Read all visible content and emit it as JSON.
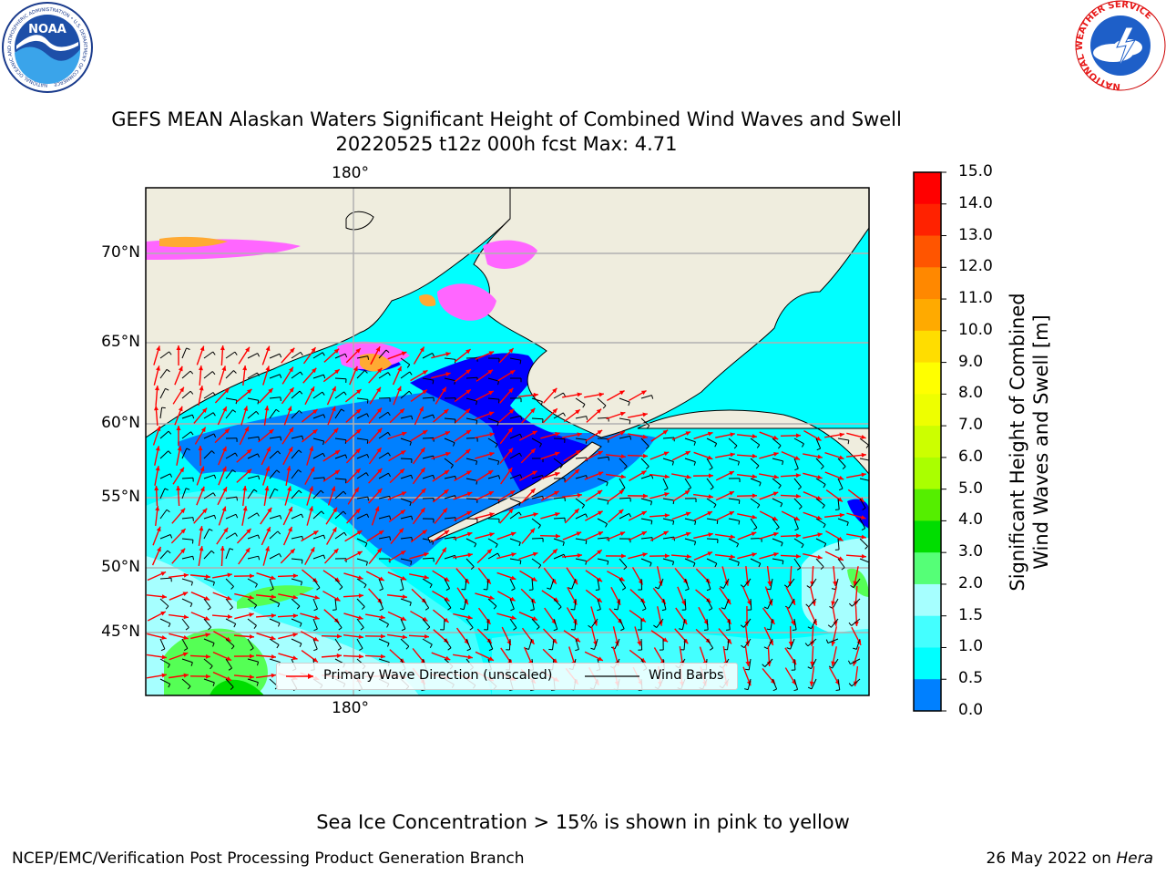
{
  "header": {
    "title_line1": "GEFS MEAN Alaskan Waters Significant Height of Combined Wind Waves and Swell",
    "title_line2": "20220525 t12z 000h fcst   Max: 4.71"
  },
  "logos": {
    "noaa": {
      "text": "NOAA",
      "ring_text": "NATIONAL OCEANIC AND ATMOSPHERIC ADMINISTRATION • U.S. DEPARTMENT OF COMMERCE"
    },
    "nws": {
      "ring_text": "NATIONAL WEATHER SERVICE"
    }
  },
  "map": {
    "lat_labels": [
      "70°N",
      "65°N",
      "60°N",
      "55°N",
      "50°N",
      "45°N"
    ],
    "lon_label_top": "180°",
    "lon_label_bottom": "180°",
    "colors": {
      "land": "#efedde",
      "ocean_1_1_5": "#00ffff",
      "ocean_1_5_2": "#44ffff",
      "ocean_2_3": "#a6ffff",
      "ocean_0_5_1": "#0080ff",
      "ocean_0_0_5": "#0000ff",
      "wave_3_4": "#55ff55",
      "wave_4_5": "#00dd00",
      "ice": "#ff66ff",
      "ice_high": "#ffaa33",
      "wave_arrow": "#ff0000",
      "wind_barb": "#000000",
      "grid": "#b0b0b0"
    },
    "legend": {
      "wave_direction": "Primary Wave Direction (unscaled)",
      "wind_barbs": "Wind Barbs"
    }
  },
  "colorbar": {
    "label": "Significant Height of Combined Wind Waves and Swell [m]",
    "label_line1": "Significant Height of Combined",
    "label_line2": "Wind Waves and Swell [m]",
    "ticks": [
      "15.0",
      "14.0",
      "13.0",
      "12.0",
      "11.0",
      "10.0",
      "9.0",
      "8.0",
      "7.0",
      "6.0",
      "5.0",
      "4.0",
      "3.0",
      "2.0",
      "1.5",
      "1.0",
      "0.5",
      "0.0"
    ],
    "colors": [
      "#ff0000",
      "#ff2200",
      "#ff5500",
      "#ff8800",
      "#ffaa00",
      "#ffdd00",
      "#ffff00",
      "#eeff00",
      "#ccff00",
      "#aaff00",
      "#55ee00",
      "#00dd00",
      "#55ff77",
      "#a6ffff",
      "#44ffff",
      "#00ffff",
      "#0080ff",
      "#0000ff"
    ]
  },
  "notes": {
    "sea_ice": "Sea Ice Concentration > 15% is shown in pink to yellow"
  },
  "footer": {
    "left": "NCEP/EMC/Verification Post Processing Product Generation Branch",
    "date": "26 May 2022 on ",
    "machine": "Hera"
  }
}
